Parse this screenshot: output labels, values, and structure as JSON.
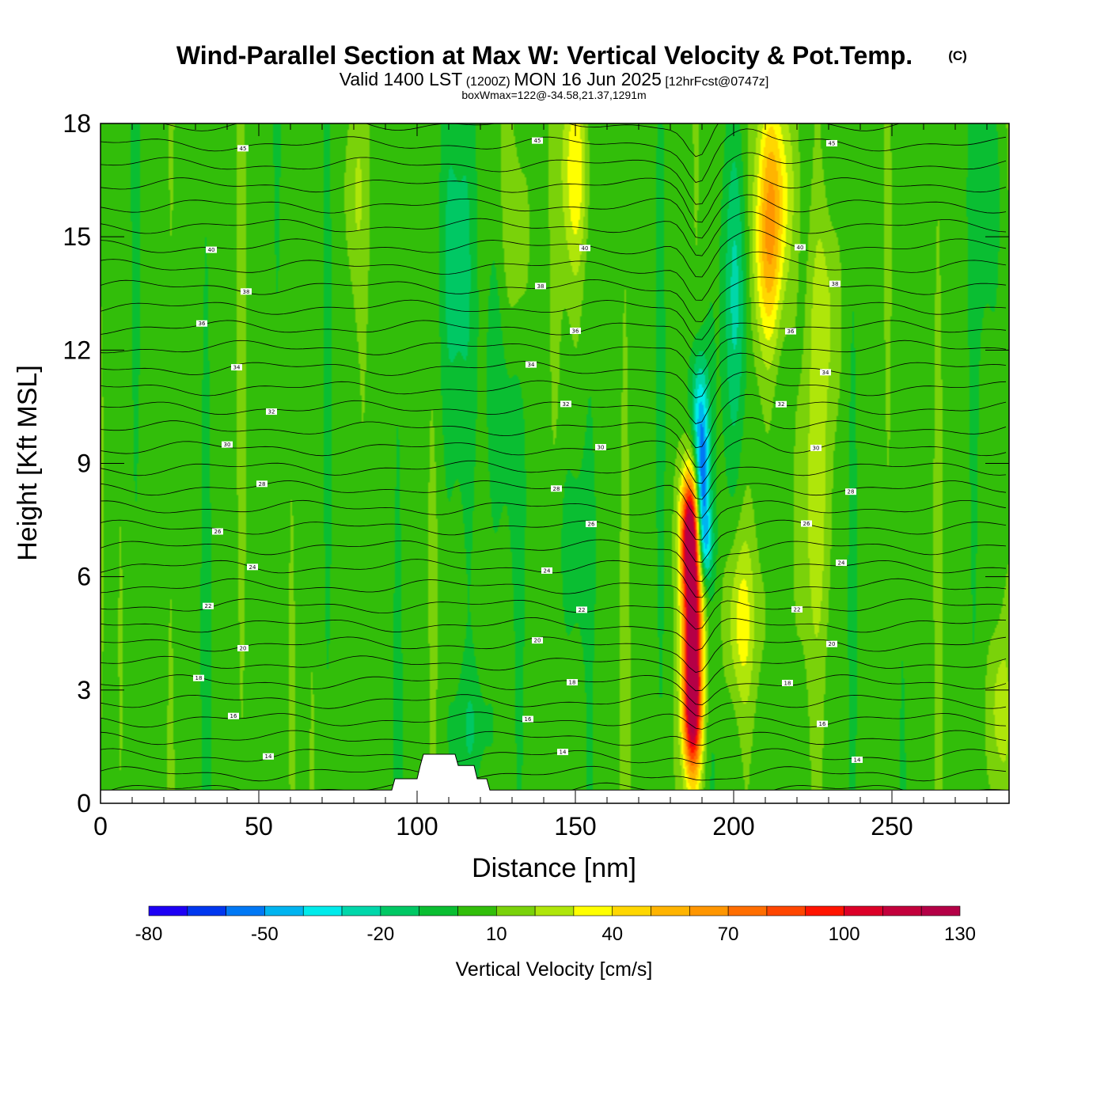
{
  "title": {
    "main": "Wind-Parallel Section at Max W: Vertical Velocity & Pot.Temp.",
    "copyright": "(C)",
    "valid_prefix": "Valid 1400 LST",
    "utc": "(1200Z)",
    "valid_date": "MON 16 Jun 2025",
    "forecast": "[12hrFcst@0747z]",
    "boxwmax": "boxWmax=122@-34.58,21.37,1291m"
  },
  "chart_data": {
    "type": "heatmap",
    "xlabel": "Distance [nm]",
    "ylabel": "Height [Kft MSL]",
    "xlim": [
      0,
      287
    ],
    "ylim": [
      0,
      18
    ],
    "x_ticks": [
      0,
      50,
      100,
      150,
      200,
      250
    ],
    "y_ticks": [
      0,
      3,
      6,
      9,
      12,
      15,
      18
    ],
    "background_value": 5,
    "terrain": [
      [
        0,
        0.35
      ],
      [
        92,
        0.35
      ],
      [
        93,
        0.65
      ],
      [
        100,
        0.65
      ],
      [
        101,
        1.0
      ],
      [
        102,
        1.3
      ],
      [
        112,
        1.3
      ],
      [
        113,
        1.0
      ],
      [
        118,
        1.0
      ],
      [
        119,
        0.65
      ],
      [
        122,
        0.65
      ],
      [
        123,
        0.35
      ],
      [
        287,
        0.35
      ]
    ],
    "features": [
      {
        "name": "updraft-core",
        "x": 187,
        "y": 4.6,
        "sx": 2.2,
        "sy": 2.2,
        "value": 125
      },
      {
        "name": "updraft-low",
        "x": 187,
        "y": 2.3,
        "sx": 2.0,
        "sy": 1.1,
        "value": 60
      },
      {
        "name": "updraft-mid",
        "x": 186,
        "y": 7.2,
        "sx": 2.0,
        "sy": 1.1,
        "value": 85
      },
      {
        "name": "downdraft",
        "x": 190,
        "y": 8.3,
        "sx": 1.6,
        "sy": 1.4,
        "value": -65
      },
      {
        "name": "downdraft-upper",
        "x": 189,
        "y": 10.5,
        "sx": 2.0,
        "sy": 1.2,
        "value": -35
      },
      {
        "name": "downdraft-side",
        "x": 191,
        "y": 6.8,
        "sx": 1.8,
        "sy": 0.7,
        "value": -30
      },
      {
        "name": "cyan-column",
        "x": 201,
        "y": 13.5,
        "sx": 3.0,
        "sy": 3.0,
        "value": -28
      },
      {
        "name": "yellow-column",
        "x": 213,
        "y": 16.5,
        "sx": 4.0,
        "sy": 2.0,
        "value": 42
      },
      {
        "name": "yellow-upper",
        "x": 211,
        "y": 14.2,
        "sx": 3.5,
        "sy": 1.8,
        "value": 33
      },
      {
        "name": "yellow-lower",
        "x": 202,
        "y": 4.8,
        "sx": 3.5,
        "sy": 1.6,
        "value": 28
      },
      {
        "name": "upper-lift",
        "x": 150,
        "y": 16.8,
        "sx": 3.0,
        "sy": 2.0,
        "value": 32
      },
      {
        "name": "sink-band",
        "x": 112,
        "y": 14.0,
        "sx": 4.0,
        "sy": 3.5,
        "value": -17
      },
      {
        "name": "sink-band-2",
        "x": 127,
        "y": 11.0,
        "sx": 4.0,
        "sy": 3.0,
        "value": -14
      },
      {
        "name": "sink-low",
        "x": 118,
        "y": 2.0,
        "sx": 5.0,
        "sy": 1.2,
        "value": -14
      },
      {
        "name": "sink-mid",
        "x": 150,
        "y": 6.8,
        "sx": 4.0,
        "sy": 1.8,
        "value": -13
      },
      {
        "name": "lift-band",
        "x": 226,
        "y": 8.0,
        "sx": 4.0,
        "sy": 3.0,
        "value": 18
      },
      {
        "name": "lift-band-2",
        "x": 229,
        "y": 13.0,
        "sx": 3.5,
        "sy": 2.0,
        "value": 18
      },
      {
        "name": "lift-right",
        "x": 284,
        "y": 2.5,
        "sx": 2.5,
        "sy": 1.5,
        "value": 20
      },
      {
        "name": "lift-upper-2",
        "x": 131,
        "y": 14.5,
        "sx": 3.0,
        "sy": 2.5,
        "value": 18
      },
      {
        "name": "lift-upper-3",
        "x": 80,
        "y": 16.0,
        "sx": 2.5,
        "sy": 2.0,
        "value": 14
      },
      {
        "name": "sink-upper-4",
        "x": 280,
        "y": 16.0,
        "sx": 3.0,
        "sy": 2.0,
        "value": -11
      }
    ],
    "potential_temperature": {
      "theta_surface": 12,
      "theta_top": 46,
      "contour_interval": 1,
      "labeled_levels": [
        14,
        16,
        18,
        20,
        22,
        24,
        26,
        28,
        30,
        32,
        34,
        36,
        38,
        40,
        45
      ]
    },
    "colorbar": {
      "title": "Vertical Velocity [cm/s]",
      "bounds": [
        -80,
        -70,
        -60,
        -50,
        -40,
        -30,
        -20,
        -10,
        0,
        10,
        20,
        30,
        40,
        50,
        60,
        70,
        80,
        90,
        100,
        110,
        120,
        130
      ],
      "colors": [
        "#1e00f5",
        "#0037ef",
        "#0078f5",
        "#00b4f0",
        "#00ebeb",
        "#00d7aa",
        "#00c864",
        "#0abe32",
        "#32be0a",
        "#7ad20a",
        "#afe60a",
        "#ffff00",
        "#ffd700",
        "#ffb400",
        "#ff9600",
        "#ff6e00",
        "#ff4600",
        "#ff1400",
        "#dc0028",
        "#c3003c",
        "#b40046"
      ],
      "tick_labels": [
        "-80",
        "-50",
        "-20",
        "10",
        "40",
        "70",
        "100",
        "130"
      ]
    }
  }
}
